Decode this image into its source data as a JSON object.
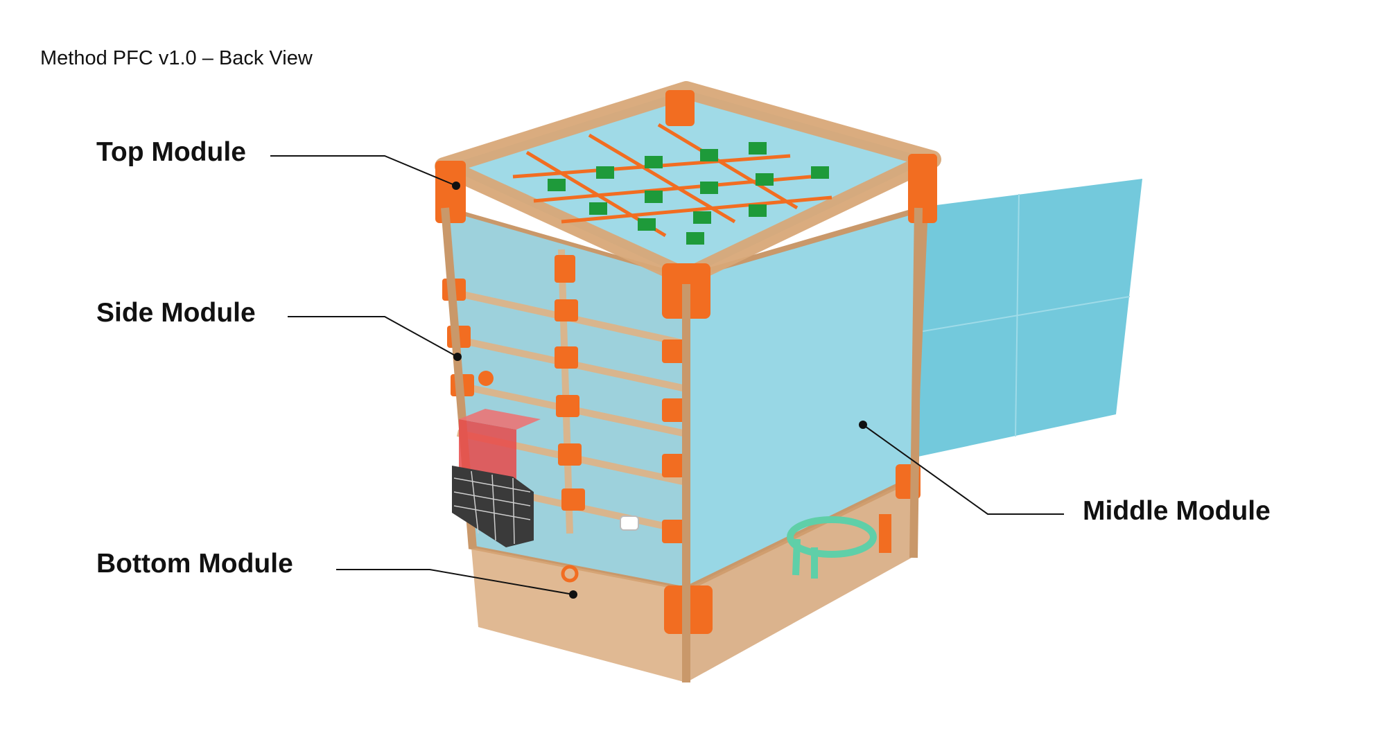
{
  "title": "Method PFC v1.0 – Back View",
  "labels": {
    "top": "Top Module",
    "side": "Side Module",
    "bottom": "Bottom Module",
    "middle": "Middle Module"
  },
  "colors": {
    "frame": "#d8a878",
    "frame_dark": "#b9875a",
    "connector": "#f26d21",
    "panel": "#7fcbdc",
    "door": "#6cc6da",
    "tray_green": "#1e9a3a",
    "red_box": "#e84a4a",
    "mint_part": "#5fcfa8"
  },
  "icons": [
    "grid-tray",
    "door-panel",
    "water-tank",
    "filter-mesh",
    "pipe-clip"
  ]
}
